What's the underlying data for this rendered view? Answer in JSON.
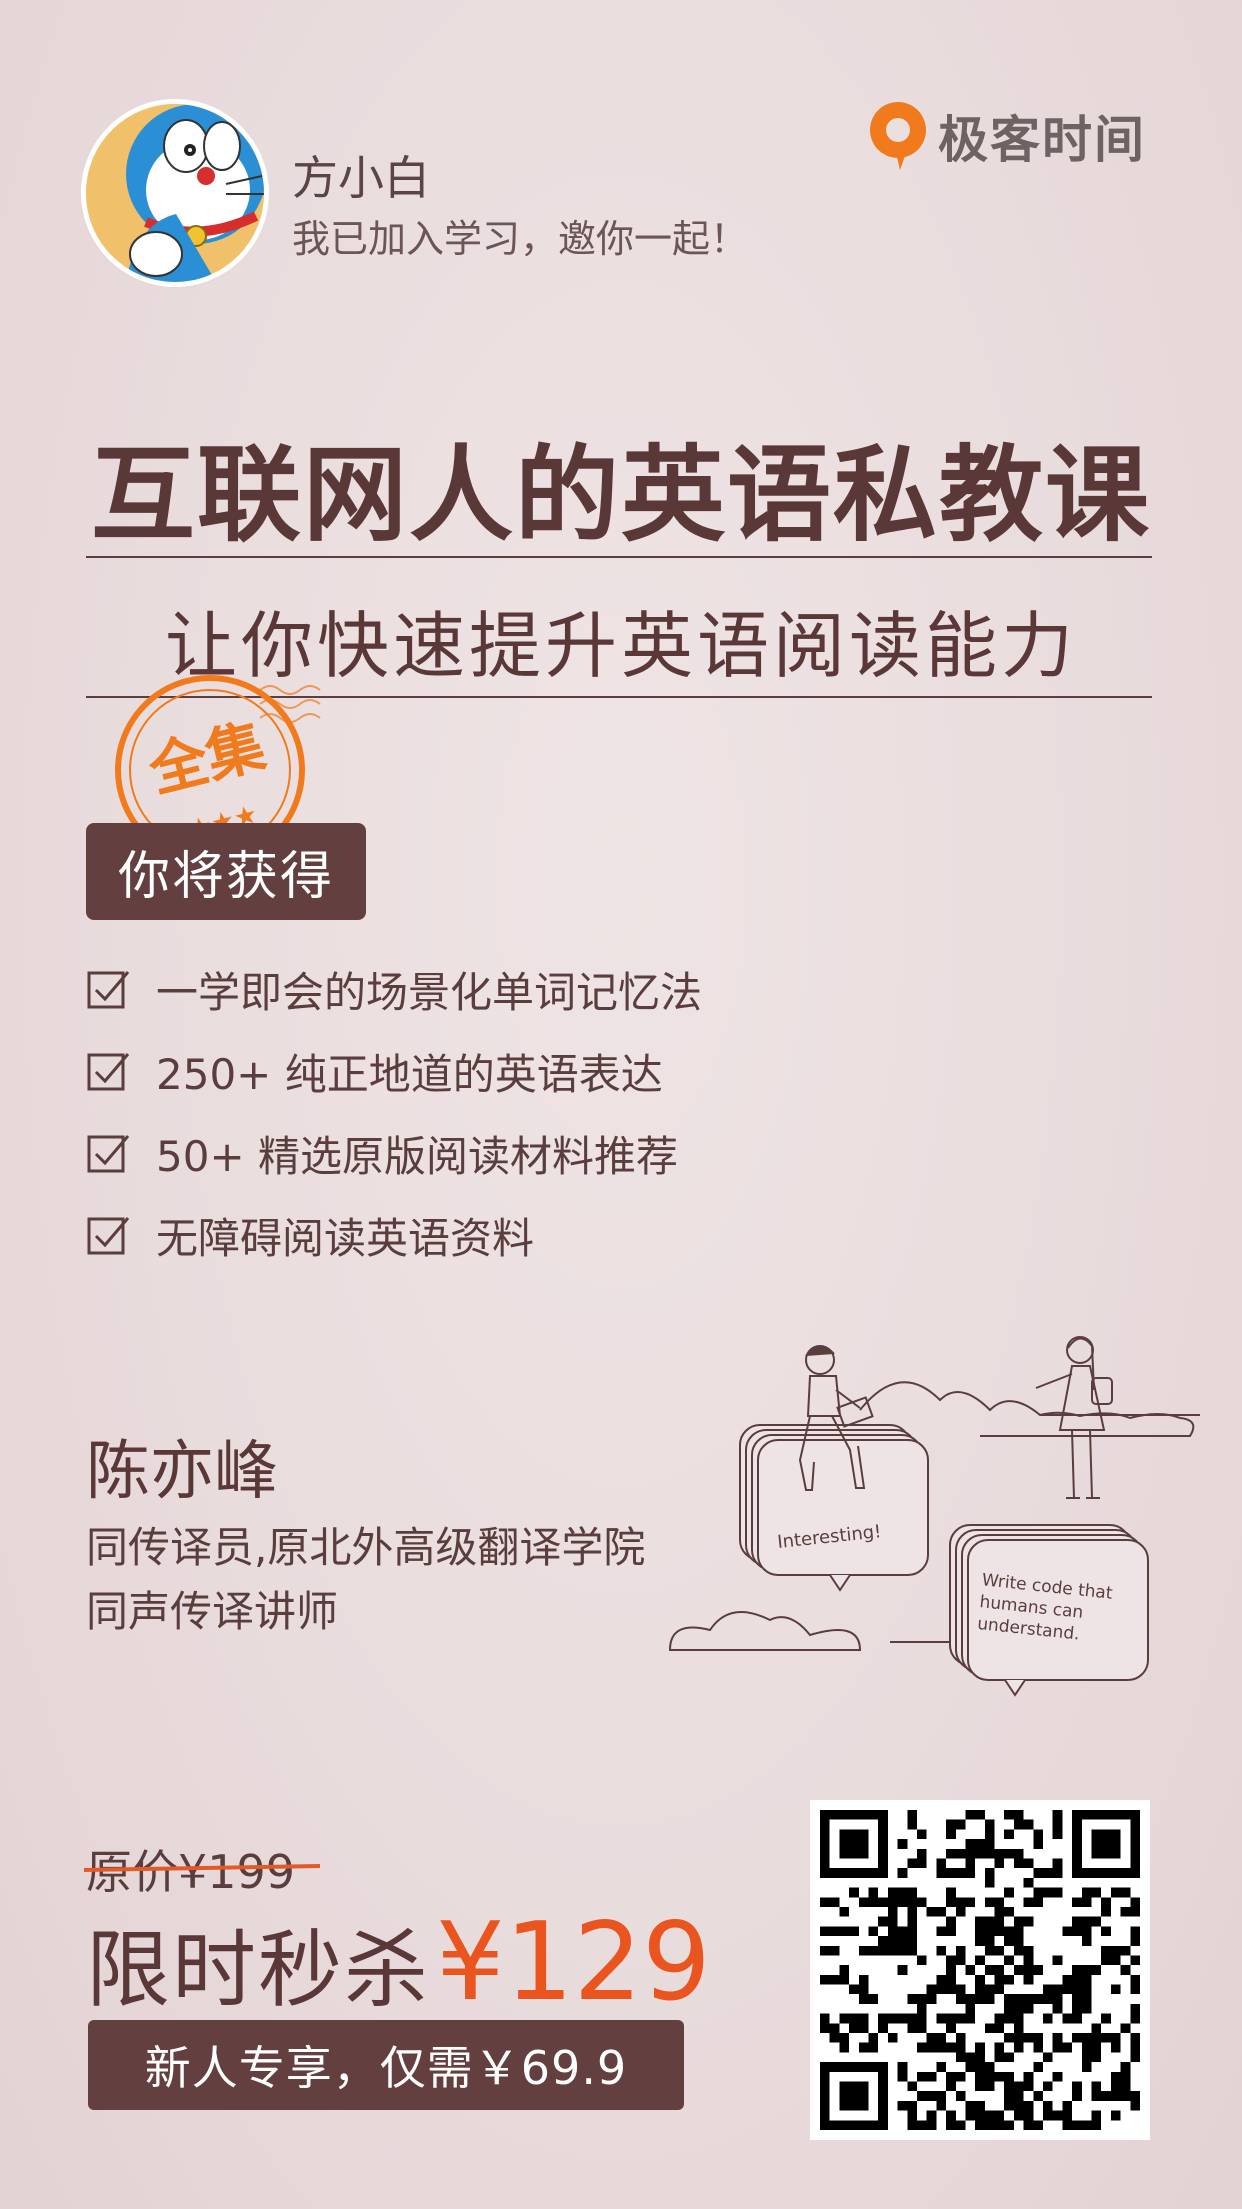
{
  "header": {
    "user_name": "方小白",
    "invite_text": "我已加入学习，邀你一起！",
    "brand_name": "极客时间"
  },
  "course": {
    "title": "互联网人的英语私教课",
    "subtitle": "让你快速提升英语阅读能力",
    "stamp_text": "全集"
  },
  "benefits": {
    "heading": "你将获得",
    "items": [
      "一学即会的场景化单词记忆法",
      "250+ 纯正地道的英语表达",
      "50+ 精选原版阅读材料推荐",
      "无障碍阅读英语资料"
    ]
  },
  "instructor": {
    "name": "陈亦峰",
    "bio_line1": "同传译员,原北外高级翻译学院",
    "bio_line2": "同声传译讲师"
  },
  "illustration": {
    "bubble_left": "Interesting!",
    "bubble_right_lines": [
      "Write code that",
      "humans can",
      "understand."
    ]
  },
  "pricing": {
    "original": "原价¥199",
    "flash_label": "限时秒杀",
    "flash_price": "¥129",
    "new_user_offer": "新人专享，仅需￥69.9"
  },
  "colors": {
    "accent": "#e9541f",
    "dark_brown": "#643f3f",
    "background": "#ebdfe0"
  },
  "icons": {
    "check": "checkbox-checked-icon",
    "brand": "geektime-logo-icon"
  }
}
